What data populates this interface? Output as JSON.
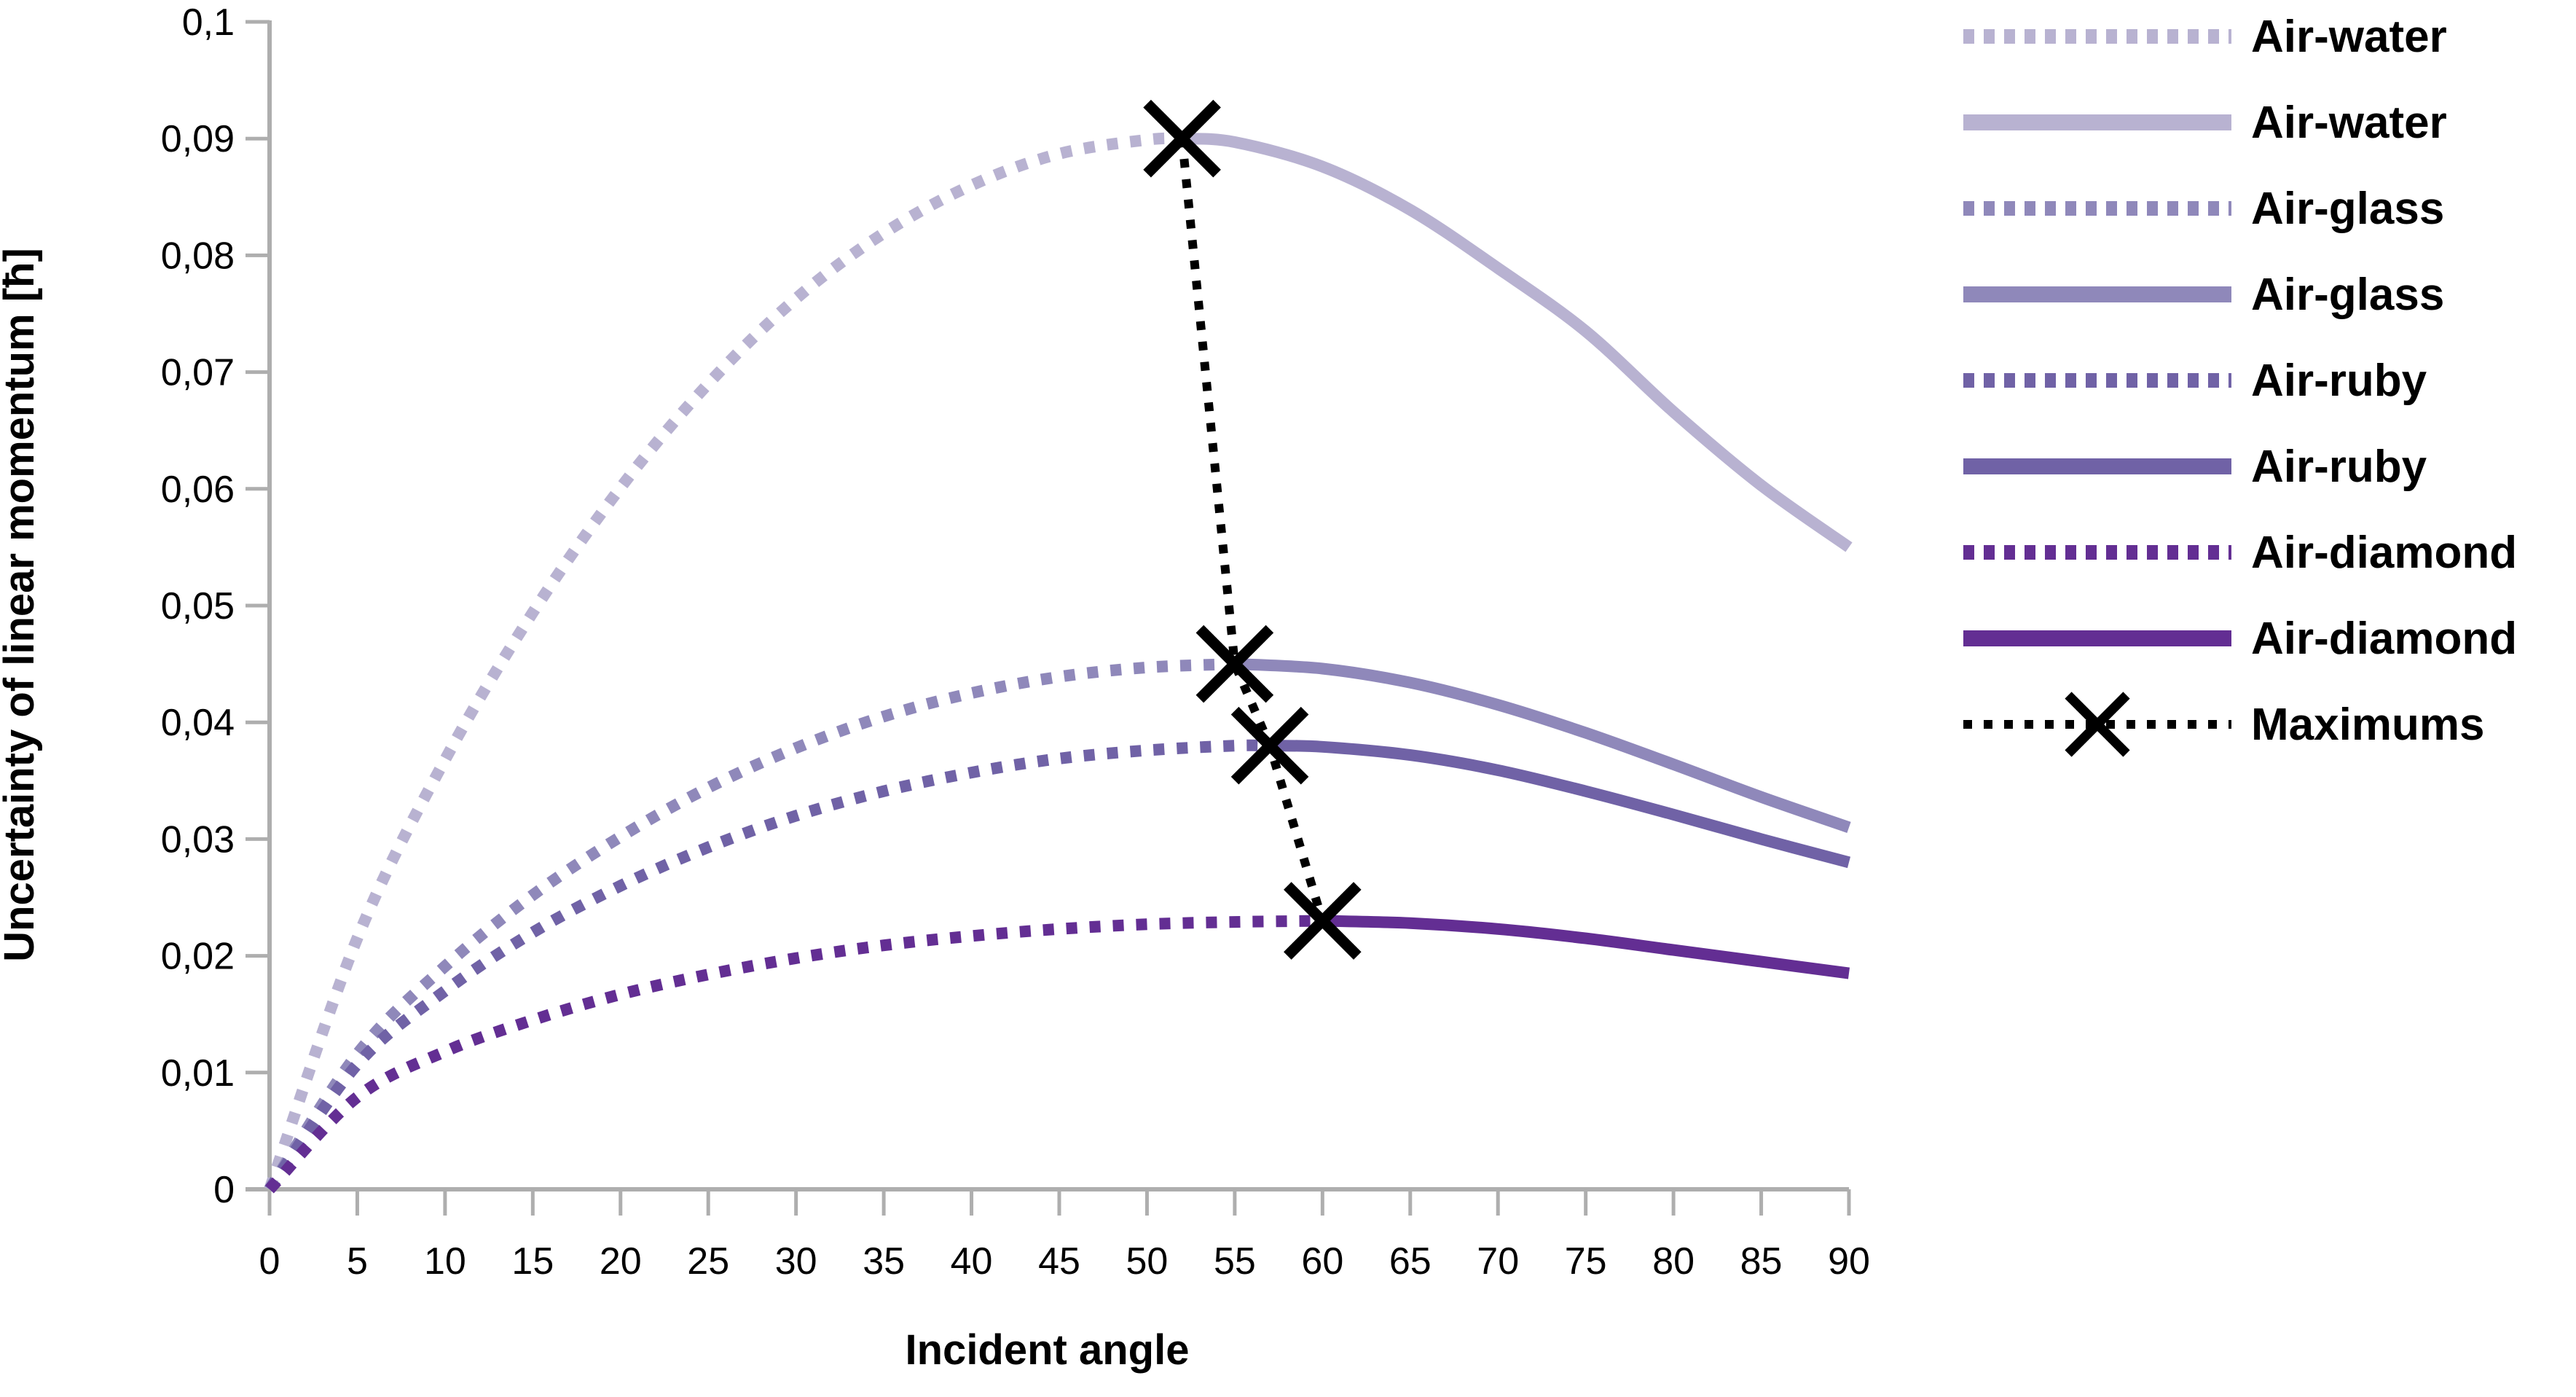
{
  "figure": {
    "background": "#ffffff",
    "axis_color": "#aeaeae",
    "text_color": "#000000",
    "marker_color": "#000000"
  },
  "chart_data": {
    "type": "line",
    "title": "",
    "xlabel": "Incident angle",
    "ylabel": "Uncertainty of linear momentum  [ħ]",
    "xlim": [
      0,
      90
    ],
    "ylim": [
      0,
      0.1
    ],
    "grid": false,
    "legend_position": "right",
    "x_ticks": [
      {
        "value": 0,
        "label": "0"
      },
      {
        "value": 5,
        "label": "5"
      },
      {
        "value": 10,
        "label": "10"
      },
      {
        "value": 15,
        "label": "15"
      },
      {
        "value": 20,
        "label": "20"
      },
      {
        "value": 25,
        "label": "25"
      },
      {
        "value": 30,
        "label": "30"
      },
      {
        "value": 35,
        "label": "35"
      },
      {
        "value": 40,
        "label": "40"
      },
      {
        "value": 45,
        "label": "45"
      },
      {
        "value": 50,
        "label": "50"
      },
      {
        "value": 55,
        "label": "55"
      },
      {
        "value": 60,
        "label": "60"
      },
      {
        "value": 65,
        "label": "65"
      },
      {
        "value": 70,
        "label": "70"
      },
      {
        "value": 75,
        "label": "75"
      },
      {
        "value": 80,
        "label": "80"
      },
      {
        "value": 85,
        "label": "85"
      },
      {
        "value": 90,
        "label": "90"
      }
    ],
    "y_ticks": [
      {
        "value": 0,
        "label": "0"
      },
      {
        "value": 0.01,
        "label": "0,01"
      },
      {
        "value": 0.02,
        "label": "0,02"
      },
      {
        "value": 0.03,
        "label": "0,03"
      },
      {
        "value": 0.04,
        "label": "0,04"
      },
      {
        "value": 0.05,
        "label": "0,05"
      },
      {
        "value": 0.06,
        "label": "0,06"
      },
      {
        "value": 0.07,
        "label": "0,07"
      },
      {
        "value": 0.08,
        "label": "0,08"
      },
      {
        "value": 0.09,
        "label": "0,09"
      },
      {
        "value": 0.1,
        "label": "0,1"
      }
    ],
    "series": [
      {
        "name": "Air-water",
        "style": "dashed",
        "color": "#b8b2d1",
        "points": [
          [
            0,
            0
          ],
          [
            5,
            0.0215
          ],
          [
            10,
            0.0368
          ],
          [
            15,
            0.0494
          ],
          [
            20,
            0.0601
          ],
          [
            25,
            0.069
          ],
          [
            30,
            0.0763
          ],
          [
            35,
            0.0819
          ],
          [
            40,
            0.086
          ],
          [
            45,
            0.0887
          ],
          [
            50,
            0.0899
          ],
          [
            52,
            0.09
          ]
        ]
      },
      {
        "name": "Air-water",
        "style": "solid",
        "color": "#b8b2d1",
        "points": [
          [
            52,
            0.09
          ],
          [
            55,
            0.0897
          ],
          [
            60,
            0.0876
          ],
          [
            65,
            0.0839
          ],
          [
            70,
            0.0789
          ],
          [
            75,
            0.0735
          ],
          [
            80,
            0.0666
          ],
          [
            85,
            0.0603
          ],
          [
            90,
            0.055
          ]
        ]
      },
      {
        "name": "Air-glass",
        "style": "dashed",
        "color": "#8f88ba",
        "points": [
          [
            0,
            0
          ],
          [
            5,
            0.0116
          ],
          [
            10,
            0.0191
          ],
          [
            15,
            0.0252
          ],
          [
            20,
            0.0302
          ],
          [
            25,
            0.0344
          ],
          [
            30,
            0.0378
          ],
          [
            35,
            0.0405
          ],
          [
            40,
            0.0425
          ],
          [
            45,
            0.0439
          ],
          [
            50,
            0.0447
          ],
          [
            55,
            0.045
          ]
        ]
      },
      {
        "name": "Air-glass",
        "style": "solid",
        "color": "#8f88ba",
        "points": [
          [
            55,
            0.045
          ],
          [
            60,
            0.0446
          ],
          [
            65,
            0.0434
          ],
          [
            70,
            0.0415
          ],
          [
            75,
            0.0391
          ],
          [
            80,
            0.0364
          ],
          [
            85,
            0.0336
          ],
          [
            90,
            0.031
          ]
        ]
      },
      {
        "name": "Air-ruby",
        "style": "dashed",
        "color": "#7062a6",
        "points": [
          [
            0,
            0
          ],
          [
            5,
            0.0107
          ],
          [
            10,
            0.017
          ],
          [
            15,
            0.022
          ],
          [
            20,
            0.026
          ],
          [
            25,
            0.0293
          ],
          [
            30,
            0.032
          ],
          [
            35,
            0.0341
          ],
          [
            40,
            0.0357
          ],
          [
            45,
            0.0369
          ],
          [
            50,
            0.0376
          ],
          [
            55,
            0.038
          ],
          [
            57,
            0.038
          ]
        ]
      },
      {
        "name": "Air-ruby",
        "style": "solid",
        "color": "#7062a6",
        "points": [
          [
            57,
            0.038
          ],
          [
            60,
            0.0379
          ],
          [
            65,
            0.0372
          ],
          [
            70,
            0.0359
          ],
          [
            75,
            0.0341
          ],
          [
            80,
            0.0321
          ],
          [
            85,
            0.03
          ],
          [
            90,
            0.028
          ]
        ]
      },
      {
        "name": "Air-diamond",
        "style": "dashed",
        "color": "#632e93",
        "points": [
          [
            0,
            0
          ],
          [
            5,
            0.0079
          ],
          [
            10,
            0.0118
          ],
          [
            15,
            0.0145
          ],
          [
            20,
            0.0167
          ],
          [
            25,
            0.0184
          ],
          [
            30,
            0.0198
          ],
          [
            35,
            0.0209
          ],
          [
            40,
            0.0217
          ],
          [
            45,
            0.0223
          ],
          [
            50,
            0.0227
          ],
          [
            55,
            0.0229
          ],
          [
            60,
            0.023
          ]
        ]
      },
      {
        "name": "Air-diamond",
        "style": "solid",
        "color": "#632e93",
        "points": [
          [
            60,
            0.023
          ],
          [
            65,
            0.0228
          ],
          [
            70,
            0.0223
          ],
          [
            75,
            0.0215
          ],
          [
            80,
            0.0205
          ],
          [
            85,
            0.0195
          ],
          [
            90,
            0.0185
          ]
        ]
      }
    ],
    "maximums": {
      "name": "Maximums",
      "style": "dashed",
      "marker": "x",
      "color": "#000000",
      "points": [
        {
          "series": "Air-water",
          "angle": 52,
          "value": 0.09
        },
        {
          "series": "Air-glass",
          "angle": 55,
          "value": 0.045
        },
        {
          "series": "Air-ruby",
          "angle": 57,
          "value": 0.038
        },
        {
          "series": "Air-diamond",
          "angle": 60,
          "value": 0.023
        }
      ]
    },
    "legend": [
      {
        "name": "Air-water",
        "style": "dashed",
        "color": "#b8b2d1"
      },
      {
        "name": "Air-water",
        "style": "solid",
        "color": "#b8b2d1"
      },
      {
        "name": "Air-glass",
        "style": "dashed",
        "color": "#8f88ba"
      },
      {
        "name": "Air-glass",
        "style": "solid",
        "color": "#8f88ba"
      },
      {
        "name": "Air-ruby",
        "style": "dashed",
        "color": "#7062a6"
      },
      {
        "name": "Air-ruby",
        "style": "solid",
        "color": "#7062a6"
      },
      {
        "name": "Air-diamond",
        "style": "dashed",
        "color": "#632e93"
      },
      {
        "name": "Air-diamond",
        "style": "solid",
        "color": "#632e93"
      },
      {
        "name": "Maximums",
        "style": "dashed-x",
        "color": "#000000"
      }
    ]
  }
}
